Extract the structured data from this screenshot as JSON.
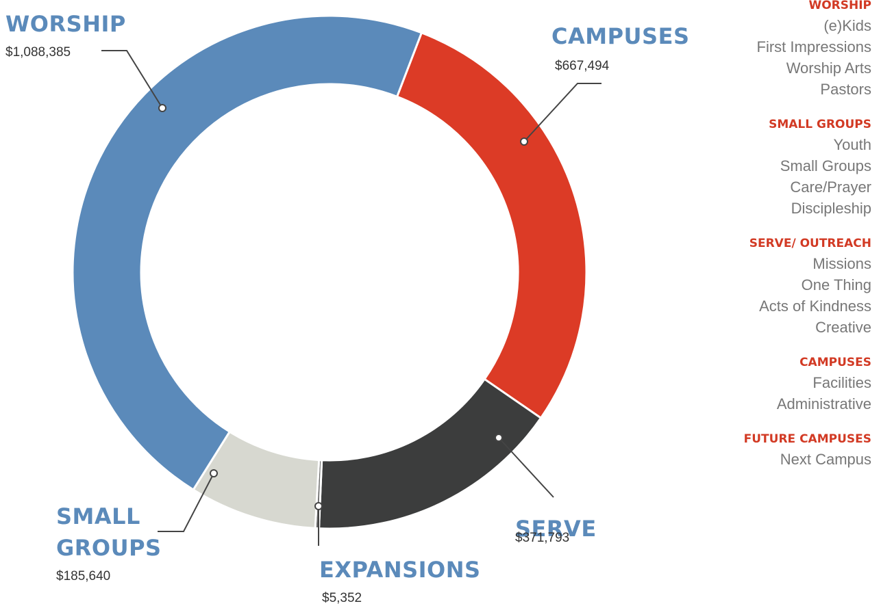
{
  "chart_data": {
    "type": "donut",
    "categories": [
      "CAMPUSES",
      "SERVE",
      "EXPANSIONS",
      "SMALL GROUPS",
      "WORSHIP"
    ],
    "values": [
      667494,
      371793,
      5352,
      185640,
      1088385
    ],
    "value_labels": [
      "$667,494",
      "$371,793",
      "$5,352",
      "$185,640",
      "$1,088,385"
    ],
    "colors": [
      "#dc3b26",
      "#3c3d3d",
      "#666666",
      "#d7d8d0",
      "#5b8aba"
    ]
  },
  "legend": [
    {
      "heading": "WORSHIP",
      "items": [
        "(e)Kids",
        "First Impressions",
        "Worship Arts",
        "Pastors"
      ]
    },
    {
      "heading": "SMALL GROUPS",
      "items": [
        "Youth",
        "Small Groups",
        "Care/Prayer",
        "Discipleship"
      ]
    },
    {
      "heading": "SERVE/ OUTREACH",
      "items": [
        "Missions",
        "One Thing",
        "Acts of Kindness",
        "Creative"
      ]
    },
    {
      "heading": "CAMPUSES",
      "items": [
        "Facilities",
        "Administrative"
      ]
    },
    {
      "heading": "FUTURE CAMPUSES",
      "items": [
        "Next Campus"
      ]
    }
  ]
}
